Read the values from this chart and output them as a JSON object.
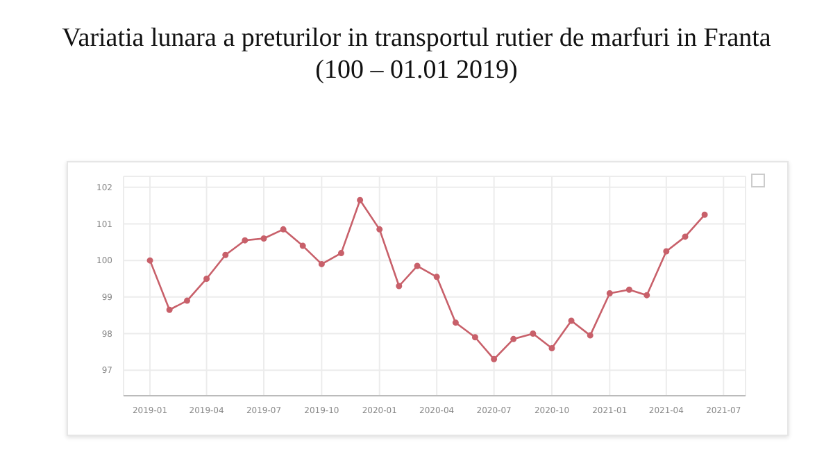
{
  "chart_data": {
    "type": "line",
    "title": "Variatia lunara a preturilor in transportul rutier de marfuri in Franta",
    "subtitle": "(100 – 01.01 2019)",
    "x": [
      "2019-01",
      "2019-02",
      "2019-03",
      "2019-04",
      "2019-05",
      "2019-06",
      "2019-07",
      "2019-08",
      "2019-09",
      "2019-10",
      "2019-11",
      "2019-12",
      "2020-01",
      "2020-02",
      "2020-03",
      "2020-04",
      "2020-05",
      "2020-06",
      "2020-07",
      "2020-08",
      "2020-09",
      "2020-10",
      "2020-11",
      "2020-12",
      "2021-01",
      "2021-02",
      "2021-03",
      "2021-04",
      "2021-05",
      "2021-06"
    ],
    "series": [
      {
        "color": "#c8606a",
        "values": [
          100.0,
          98.65,
          98.9,
          99.5,
          100.15,
          100.55,
          100.6,
          100.85,
          100.4,
          99.9,
          100.2,
          101.65,
          100.85,
          99.3,
          99.85,
          99.55,
          98.3,
          97.9,
          97.3,
          97.85,
          98.0,
          97.6,
          98.35,
          97.95,
          99.1,
          99.2,
          99.05,
          100.25,
          100.65,
          101.25
        ]
      }
    ],
    "xlim": [
      "2018-11-20",
      "2021-08-05"
    ],
    "xticks": [
      "2019-01",
      "2019-04",
      "2019-07",
      "2019-10",
      "2020-01",
      "2020-04",
      "2020-07",
      "2020-10",
      "2021-01",
      "2021-04",
      "2021-07"
    ],
    "ylim": [
      96.3,
      102.3
    ],
    "yticks": [
      97,
      98,
      99,
      100,
      101,
      102
    ],
    "grid": true,
    "marker": "circle",
    "line_style": "solid"
  }
}
